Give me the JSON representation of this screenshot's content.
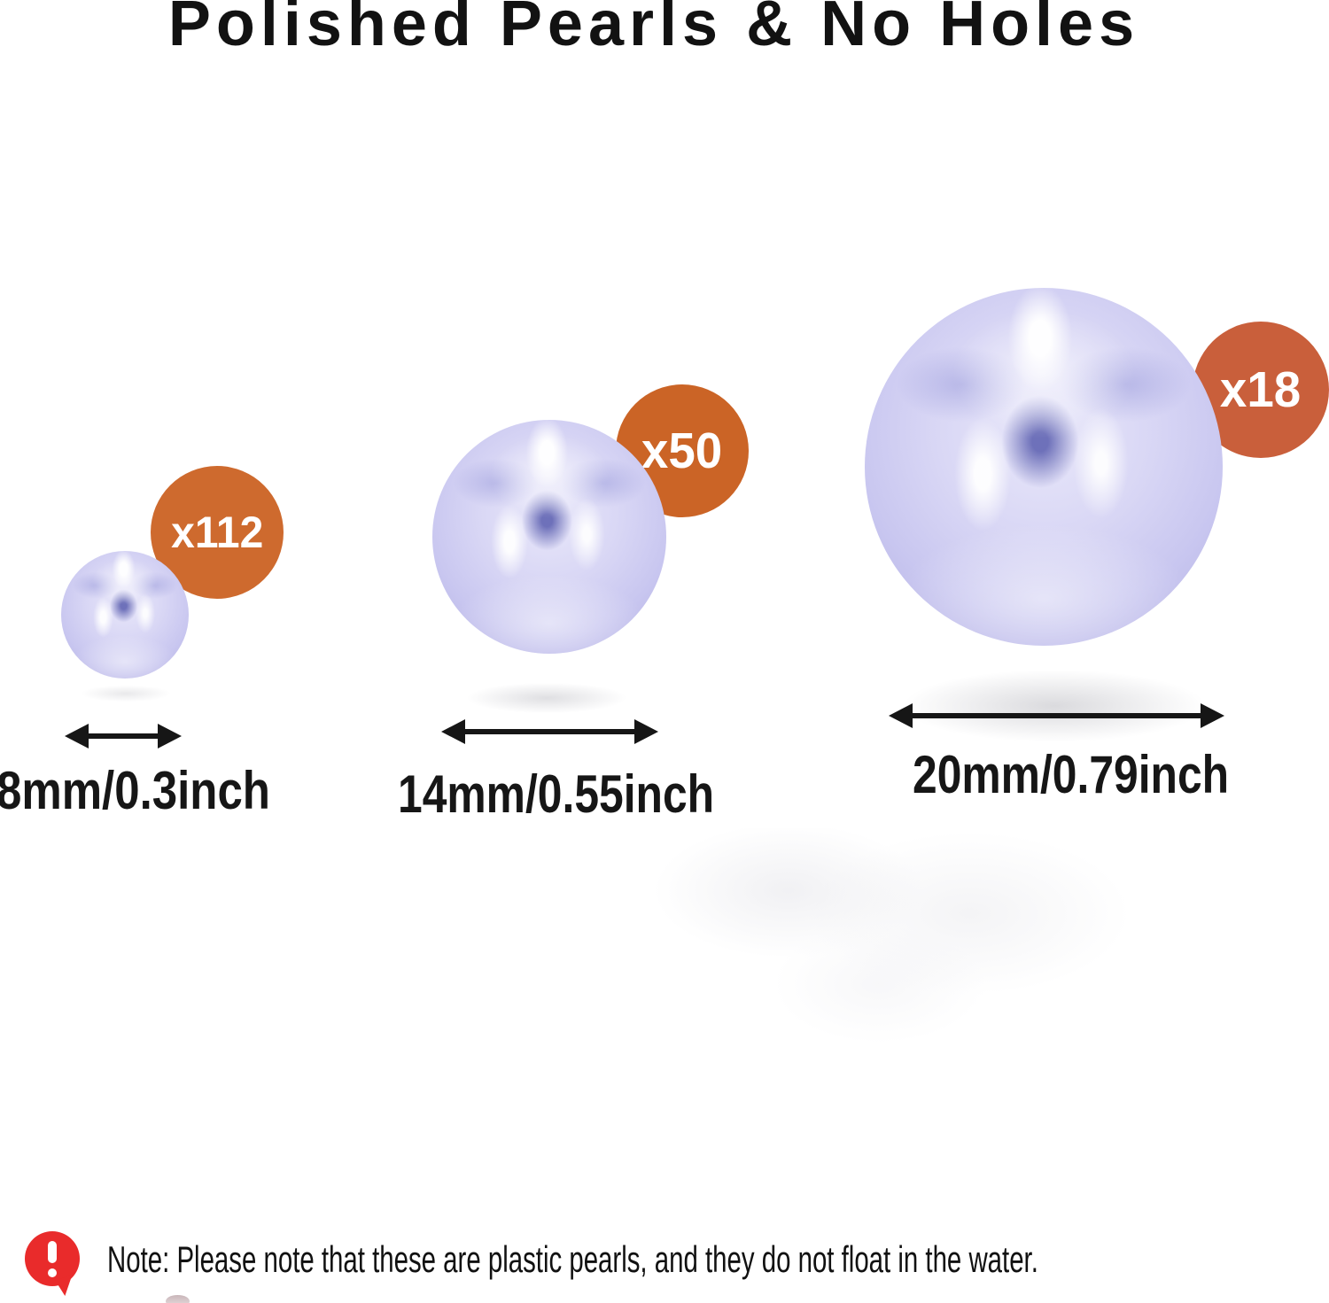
{
  "title": "Polished Pearls & No Holes",
  "variants": [
    {
      "name": "small-pearl",
      "count": "x112",
      "size": "8mm/0.3inch"
    },
    {
      "name": "medium-pearl",
      "count": "x50",
      "size": "14mm/0.55inch"
    },
    {
      "name": "large-pearl",
      "count": "x18",
      "size": "20mm/0.79inch"
    }
  ],
  "note": {
    "icon": "alert-speech-bubble-icon",
    "text": "Note: Please note that these are plastic pearls, and they do not float in the water."
  },
  "colors": {
    "badge_orange": "#CE6A2E",
    "badge_orange_large": "#C95F3B",
    "note_red": "#E92B2B",
    "pearl_lavender": "#C9C7F0",
    "text_black": "#161616",
    "background": "#FFFFFF"
  }
}
